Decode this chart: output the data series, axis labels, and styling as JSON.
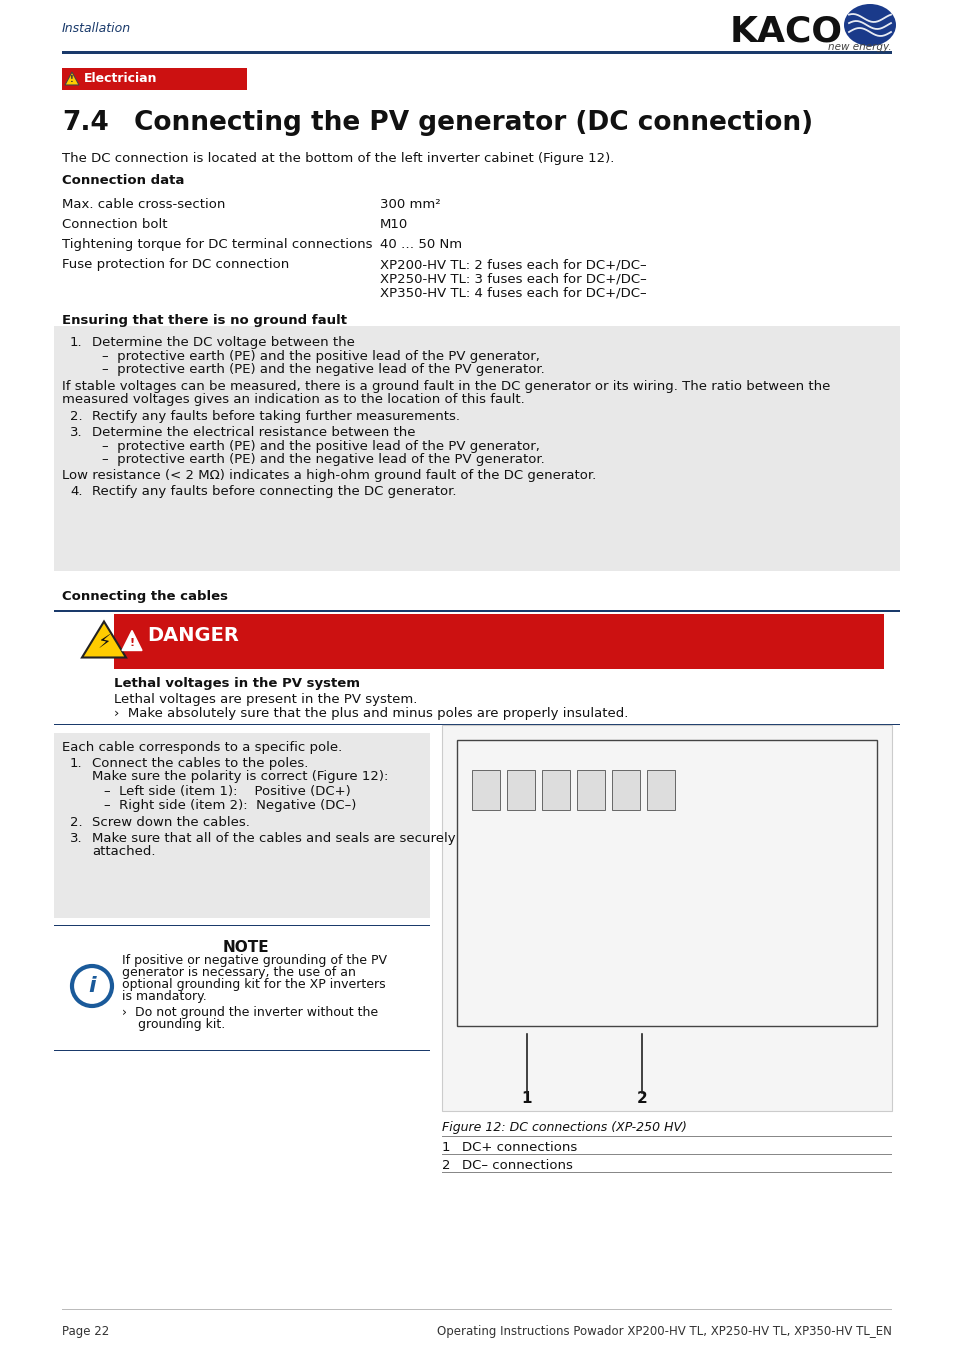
{
  "header_text": "Installation",
  "header_color": "#1a3a6b",
  "kaco_text": "KACO",
  "new_energy_text": "new energy.",
  "line_color": "#1a3a6b",
  "red_bar_color": "#cc1111",
  "electrician_text": "Electrician",
  "section_title": "7.4     Connecting the PV generator (DC connection)",
  "intro_text": "The DC connection is located at the bottom of the left inverter cabinet (Figure 12).",
  "connection_data_title": "Connection data",
  "table_rows": [
    [
      "Max. cable cross-section",
      "300 mm²"
    ],
    [
      "Connection bolt",
      "M10"
    ],
    [
      "Tightening torque for DC terminal connections",
      "40 … 50 Nm"
    ],
    [
      "Fuse protection for DC connection",
      "XP200-HV TL: 2 fuses each for DC+/DC–\nXP250-HV TL: 3 fuses each for DC+/DC–\nXP350-HV TL: 4 fuses each for DC+/DC–"
    ]
  ],
  "ground_fault_title": "Ensuring that there is no ground fault",
  "connecting_cables_title": "Connecting the cables",
  "danger_text": "DANGER",
  "danger_subtitle": "Lethal voltages in the PV system",
  "cable_steps_text": "Each cable corresponds to a specific pole.",
  "note_title": "NOTE",
  "figure_caption": "Figure 12: DC connections (XP-250 HV)",
  "footer_left": "Page 22",
  "footer_right": "Operating Instructions Powador XP200-HV TL, XP250-HV TL, XP350-HV TL_EN",
  "bg_color": "#ffffff",
  "gray_box_color": "#e8e8e8",
  "danger_red": "#cc1111",
  "header_line_color": "#1a3a6b",
  "info_blue": "#1a5a9a"
}
